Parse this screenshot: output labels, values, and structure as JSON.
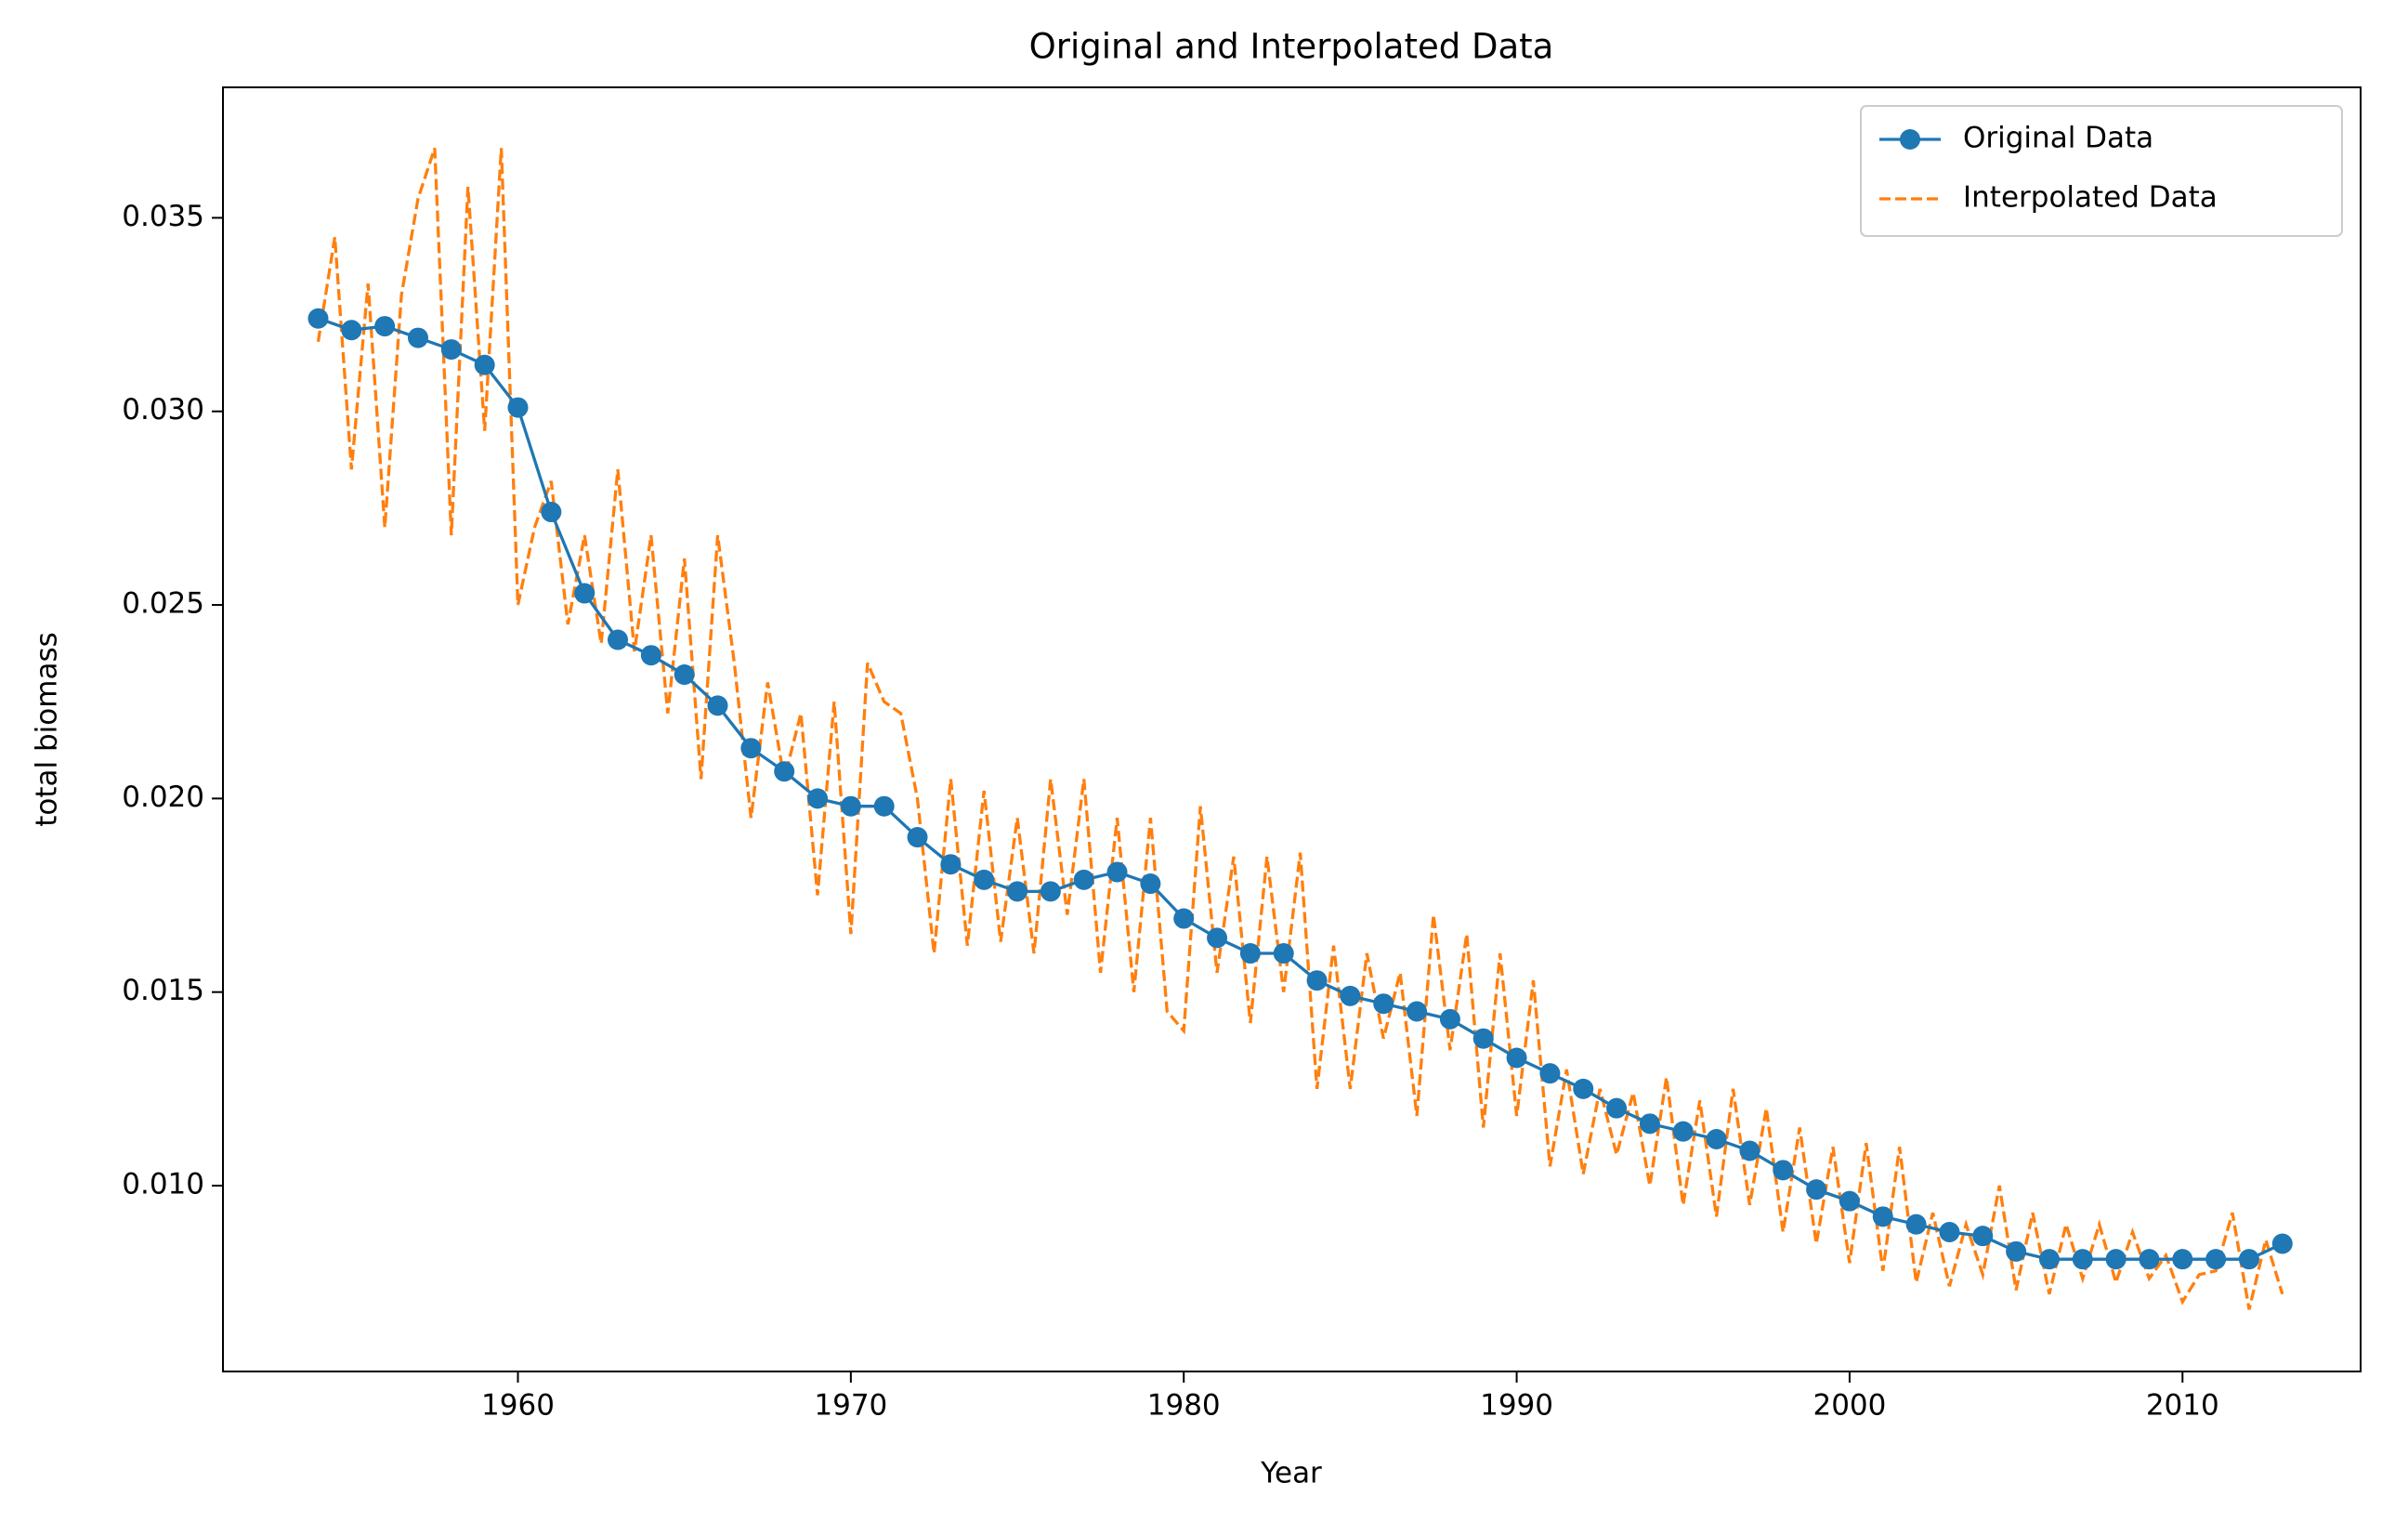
{
  "chart_data": {
    "type": "line",
    "title": "Original and Interpolated Data",
    "x_label": "Year",
    "y_label": "total biomass",
    "xlim": [
      1951.14,
      2015.35
    ],
    "xticks": [
      1960,
      1970,
      1980,
      1990,
      2000,
      2010
    ],
    "ylim": [
      0.0052,
      0.03837
    ],
    "yticks": [
      {
        "value": 0.01,
        "label": "0.010"
      },
      0.015,
      {
        "value": 0.02,
        "label": "0.020"
      },
      0.025,
      {
        "value": 0.03,
        "label": "0.030"
      },
      0.035
    ],
    "legend": "upper right",
    "series": [
      {
        "name": "Original Data",
        "color": "#1f77b4",
        "style": "solid-marker",
        "x": [
          1954,
          1955,
          1956,
          1957,
          1958,
          1959,
          1960,
          1961,
          1962,
          1963,
          1964,
          1965,
          1966,
          1967,
          1968,
          1969,
          1970,
          1971,
          1972,
          1973,
          1974,
          1975,
          1976,
          1977,
          1978,
          1979,
          1980,
          1981,
          1982,
          1983,
          1984,
          1985,
          1986,
          1987,
          1988,
          1989,
          1990,
          1991,
          1992,
          1993,
          1994,
          1995,
          1996,
          1997,
          1998,
          1999,
          2000,
          2001,
          2002,
          2003,
          2004,
          2005,
          2006,
          2007,
          2008,
          2009,
          2010,
          2011,
          2012,
          2013
        ],
        "values": [
          0.0324,
          0.0321,
          0.0322,
          0.0319,
          0.0316,
          0.0312,
          0.0301,
          0.0274,
          0.0253,
          0.0241,
          0.0237,
          0.0232,
          0.0224,
          0.0213,
          0.0207,
          0.02,
          0.0198,
          0.0198,
          0.019,
          0.0183,
          0.0179,
          0.0176,
          0.0176,
          0.0179,
          0.0181,
          0.0178,
          0.0169,
          0.0164,
          0.016,
          0.016,
          0.0153,
          0.0149,
          0.0147,
          0.0145,
          0.0143,
          0.0138,
          0.0133,
          0.0129,
          0.0125,
          0.012,
          0.0116,
          0.0114,
          0.0112,
          0.0109,
          0.0104,
          0.0099,
          0.0096,
          0.0092,
          0.009,
          0.0088,
          0.0087,
          0.0083,
          0.0081,
          0.0081,
          0.0081,
          0.0081,
          0.0081,
          0.0081,
          0.0081,
          0.0085
        ]
      },
      {
        "name": "Interpolated Data",
        "color": "#ff7f0e",
        "style": "dashed",
        "x": [
          1954,
          1954.5,
          1955,
          1955.5,
          1956,
          1956.5,
          1957,
          1957.5,
          1958,
          1958.5,
          1959,
          1959.5,
          1960,
          1960.5,
          1961,
          1961.5,
          1962,
          1962.5,
          1963,
          1963.5,
          1964,
          1964.5,
          1965,
          1965.5,
          1966,
          1966.5,
          1967,
          1967.5,
          1968,
          1968.5,
          1969,
          1969.5,
          1970,
          1970.5,
          1971,
          1971.5,
          1972,
          1972.5,
          1973,
          1973.5,
          1974,
          1974.5,
          1975,
          1975.5,
          1976,
          1976.5,
          1977,
          1977.5,
          1978,
          1978.5,
          1979,
          1979.5,
          1980,
          1980.5,
          1981,
          1981.5,
          1982,
          1982.5,
          1983,
          1983.5,
          1984,
          1984.5,
          1985,
          1985.5,
          1986,
          1986.5,
          1987,
          1987.5,
          1988,
          1988.5,
          1989,
          1989.5,
          1990,
          1990.5,
          1991,
          1991.5,
          1992,
          1992.5,
          1993,
          1993.5,
          1994,
          1994.5,
          1995,
          1995.5,
          1996,
          1996.5,
          1997,
          1997.5,
          1998,
          1998.5,
          1999,
          1999.5,
          2000,
          2000.5,
          2001,
          2001.5,
          2002,
          2002.5,
          2003,
          2003.5,
          2004,
          2004.5,
          2005,
          2005.5,
          2006,
          2006.5,
          2007,
          2007.5,
          2008,
          2008.5,
          2009,
          2009.5,
          2010,
          2010.5,
          2011,
          2011.5,
          2012,
          2012.5,
          2013
        ],
        "values": [
          0.0318,
          0.0345,
          0.0285,
          0.0333,
          0.027,
          0.033,
          0.0355,
          0.0368,
          0.0268,
          0.0358,
          0.0295,
          0.0368,
          0.025,
          0.027,
          0.0282,
          0.0245,
          0.0268,
          0.024,
          0.0285,
          0.0238,
          0.0268,
          0.0222,
          0.0262,
          0.0205,
          0.0268,
          0.0235,
          0.0195,
          0.023,
          0.0205,
          0.0222,
          0.0175,
          0.0225,
          0.0165,
          0.0235,
          0.0225,
          0.0222,
          0.02,
          0.016,
          0.0205,
          0.0162,
          0.0202,
          0.0163,
          0.0195,
          0.016,
          0.0205,
          0.017,
          0.0205,
          0.0155,
          0.0195,
          0.015,
          0.0195,
          0.0145,
          0.014,
          0.0198,
          0.0155,
          0.0185,
          0.0142,
          0.0185,
          0.015,
          0.0186,
          0.0125,
          0.0162,
          0.0125,
          0.016,
          0.0138,
          0.0155,
          0.0118,
          0.017,
          0.0135,
          0.0165,
          0.0115,
          0.016,
          0.0118,
          0.0153,
          0.0105,
          0.013,
          0.0103,
          0.0125,
          0.0108,
          0.0124,
          0.01,
          0.0128,
          0.0095,
          0.0122,
          0.0092,
          0.0125,
          0.0095,
          0.012,
          0.0088,
          0.0115,
          0.0085,
          0.011,
          0.008,
          0.0111,
          0.0078,
          0.011,
          0.0075,
          0.0093,
          0.0074,
          0.009,
          0.0077,
          0.01,
          0.0073,
          0.0093,
          0.0072,
          0.009,
          0.0076,
          0.009,
          0.0075,
          0.0088,
          0.0076,
          0.0082,
          0.007,
          0.0077,
          0.0078,
          0.0093,
          0.0068,
          0.0086,
          0.0072
        ]
      }
    ]
  }
}
